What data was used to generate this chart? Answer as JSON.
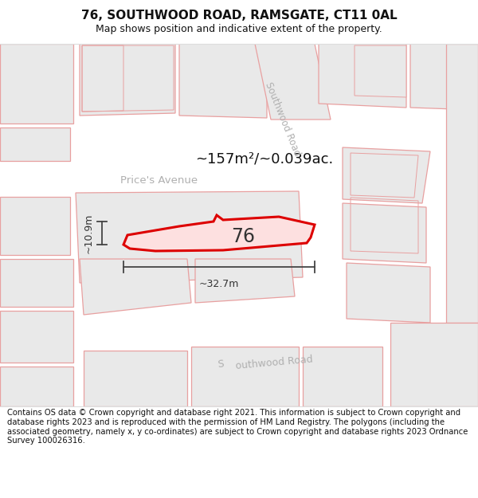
{
  "title_line1": "76, SOUTHWOOD ROAD, RAMSGATE, CT11 0AL",
  "title_line2": "Map shows position and indicative extent of the property.",
  "footer_text": "Contains OS data © Crown copyright and database right 2021. This information is subject to Crown copyright and database rights 2023 and is reproduced with the permission of HM Land Registry. The polygons (including the associated geometry, namely x, y co-ordinates) are subject to Crown copyright and database rights 2023 Ordnance Survey 100026316.",
  "area_text": "~157m²/~0.039ac.",
  "label_76": "76",
  "dim_width": "~32.7m",
  "dim_height": "~10.9m",
  "map_bg": "#f7f7f7",
  "road_fill": "#ffffff",
  "road_edge": "#cccccc",
  "block_fill": "#e8e8e8",
  "block_edge": "#f0a0a0",
  "plot_fill": "#ffd0d0",
  "plot_edge": "#dd0000",
  "road_label_color": "#aaaaaa",
  "text_color": "#111111",
  "dim_color": "#333333",
  "title_fontsize": 11,
  "subtitle_fontsize": 9,
  "footer_fontsize": 7.2,
  "area_fontsize": 13,
  "label_fontsize": 17,
  "dim_fontsize": 9
}
